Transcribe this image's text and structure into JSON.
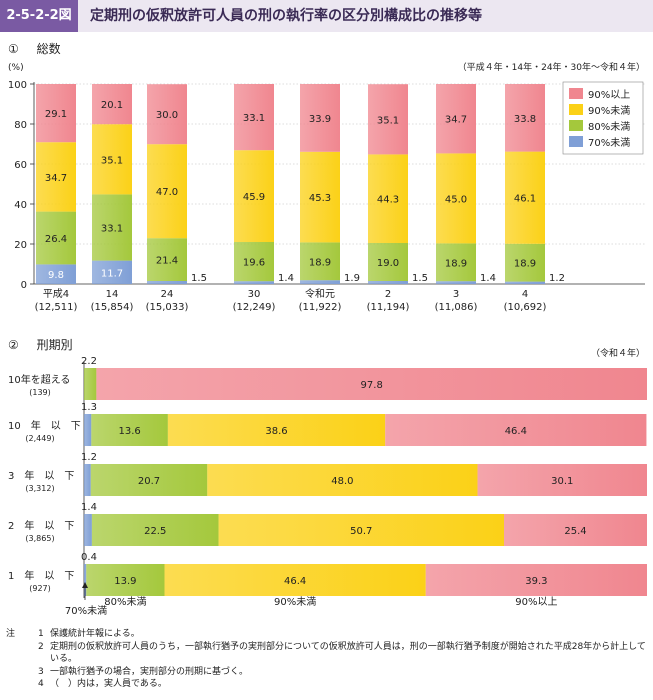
{
  "header": {
    "fig_no": "2-5-2-2図",
    "title": "定期刑の仮釈放許可人員の刑の執行率の区分別構成比の推移等"
  },
  "section1": {
    "mark": "①",
    "title": "総数",
    "note": "（平成４年・14年・24年・30年～令和４年）",
    "yunit": "(%)"
  },
  "section2": {
    "mark": "②",
    "title": "刑期別",
    "note": "（令和４年）"
  },
  "colors": {
    "c90over": "#f0868f",
    "c90under": "#fbd117",
    "c80under": "#a4c83c",
    "c70under": "#7f9fd6"
  },
  "chart_data": [
    {
      "type": "bar",
      "stacked": true,
      "orientation": "vertical",
      "ylabel": "(%)",
      "ylim": [
        0,
        100
      ],
      "yticks": [
        "0",
        "20",
        "40",
        "60",
        "80",
        "100"
      ],
      "categories": [
        "平成4",
        "14",
        "24",
        "30",
        "令和元",
        "2",
        "3",
        "4"
      ],
      "counts": [
        "(12,511)",
        "(15,854)",
        "(15,033)",
        "(12,249)",
        "(11,922)",
        "(11,194)",
        "(11,086)",
        "(10,692)"
      ],
      "legend": [
        "90%以上",
        "90%未満",
        "80%未満",
        "70%未満"
      ],
      "series": [
        {
          "name": "70%未満",
          "values": [
            9.8,
            11.7,
            1.5,
            1.4,
            1.9,
            1.5,
            1.4,
            1.2
          ]
        },
        {
          "name": "80%未満",
          "values": [
            26.4,
            33.1,
            21.4,
            19.6,
            18.9,
            19.0,
            18.9,
            18.9
          ]
        },
        {
          "name": "90%未満",
          "values": [
            34.7,
            35.1,
            47.0,
            45.9,
            45.3,
            44.3,
            45.0,
            46.1
          ]
        },
        {
          "name": "90%以上",
          "values": [
            29.1,
            20.1,
            30.0,
            33.1,
            33.9,
            35.1,
            34.7,
            33.8
          ]
        }
      ]
    },
    {
      "type": "bar",
      "stacked": true,
      "orientation": "horizontal",
      "categories": [
        "10年を超える",
        "10　年　以　下",
        "3　年　以　下",
        "2　年　以　下",
        "1　年　以　下"
      ],
      "counts": [
        "(139)",
        "(2,449)",
        "(3,312)",
        "(3,865)",
        "(927)"
      ],
      "series": [
        {
          "name": "70%未満",
          "values": [
            0,
            1.3,
            1.2,
            1.4,
            0.4
          ]
        },
        {
          "name": "80%未満",
          "values": [
            2.2,
            13.6,
            20.7,
            22.5,
            13.9
          ]
        },
        {
          "name": "90%未満",
          "values": [
            0,
            38.6,
            48.0,
            50.7,
            46.4
          ]
        },
        {
          "name": "90%以上",
          "values": [
            97.8,
            46.4,
            30.1,
            25.4,
            39.3
          ]
        }
      ],
      "bottom_labels": [
        "70%未満",
        "80%未満",
        "90%未満",
        "90%以上"
      ]
    }
  ],
  "notes": {
    "label": "注",
    "items": [
      {
        "num": "1",
        "text": "保護統計年報による。"
      },
      {
        "num": "2",
        "text": "定期刑の仮釈放許可人員のうち，一部執行猶予の実刑部分についての仮釈放許可人員は，刑の一部執行猶予制度が開始された平成28年から計上している。"
      },
      {
        "num": "3",
        "text": "一部執行猶予の場合，実刑部分の刑期に基づく。"
      },
      {
        "num": "4",
        "text": "（　）内は，実人員である。"
      }
    ]
  }
}
